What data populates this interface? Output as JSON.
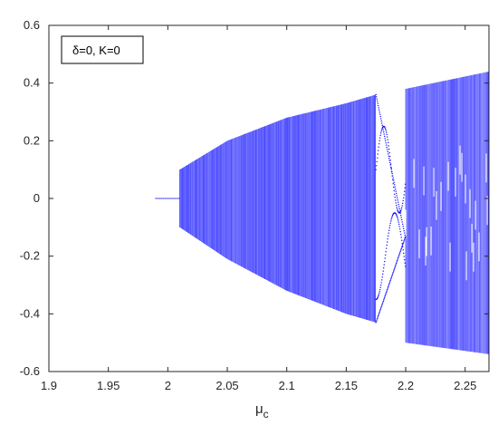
{
  "chart_data": {
    "type": "scatter",
    "title": "",
    "xlabel": "μ",
    "xlabel_subscript": "c",
    "ylabel": "",
    "xlim": [
      1.9,
      2.27
    ],
    "ylim": [
      -0.6,
      0.6
    ],
    "xticks": [
      "1.9",
      "1.95",
      "2",
      "2.05",
      "2.1",
      "2.15",
      "2.2",
      "2.25"
    ],
    "yticks": [
      "0.6",
      "0.4",
      "0.2",
      "0",
      "-0.2",
      "-0.4",
      "-0.6"
    ],
    "grid": false,
    "legend": {
      "text": "δ=0, K=0",
      "placement": "top-left"
    },
    "series": [
      {
        "color": "#0000ff",
        "description_points": {
          "fixed_point": {
            "x_range": [
              1.99,
              2.01
            ],
            "y": 0
          },
          "chaotic_band_upper": [
            [
              2.01,
              0.1
            ],
            [
              2.05,
              0.2
            ],
            [
              2.1,
              0.28
            ],
            [
              2.15,
              0.33
            ],
            [
              2.175,
              0.36
            ]
          ],
          "chaotic_band_lower": [
            [
              2.01,
              -0.1
            ],
            [
              2.05,
              -0.21
            ],
            [
              2.1,
              -0.32
            ],
            [
              2.15,
              -0.4
            ],
            [
              2.175,
              -0.43
            ]
          ],
          "periodic_window": {
            "x_range": [
              2.175,
              2.2
            ]
          },
          "second_chaotic_region": {
            "x_range": [
              2.2,
              2.27
            ],
            "upper": [
              [
                2.2,
                0.38
              ],
              [
                2.27,
                0.44
              ]
            ],
            "lower": [
              [
                2.2,
                -0.5
              ],
              [
                2.27,
                -0.54
              ]
            ]
          }
        }
      }
    ],
    "colors": {
      "points": "#0000ff",
      "axis": "#262626",
      "background": "#ffffff"
    }
  }
}
